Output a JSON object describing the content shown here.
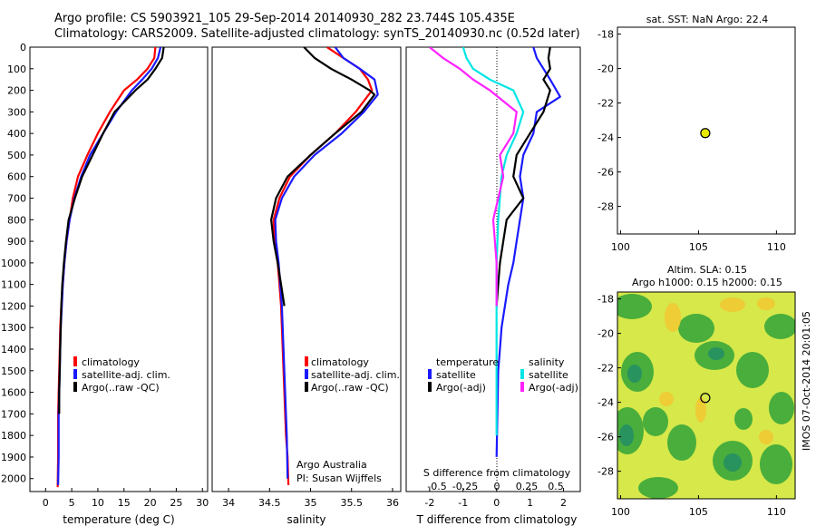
{
  "header": {
    "line1": "Argo profile: CS 5903921_105 29-Sep-2014 20140930_282 23.744S 105.435E",
    "line2": "Climatology: CARS2009. Satellite-adjusted climatology: synTS_20140930.nc (0.52d later)"
  },
  "colors": {
    "climatology": "#ff0000",
    "satellite": "#1a1aff",
    "argo": "#000000",
    "sat_salinity": "#00e5e5",
    "argo_salinity": "#ff22ff",
    "map_dot": "#e8e800"
  },
  "panel1": {
    "xlabel": "temperature (deg C)",
    "legend": [
      "climatology",
      "satellite-adj. clim.",
      "Argo(..raw -QC)"
    ]
  },
  "panel2": {
    "xlabel": "salinity",
    "legend": [
      "climatology",
      "satellite-adj. clim.",
      "Argo(..raw -QC)"
    ],
    "note1": "Argo Australia",
    "note2": "PI: Susan Wijffels"
  },
  "panel3": {
    "xlabel": "T difference from climatology",
    "top_label": "S difference from climatology",
    "legend_head_t": "temperature",
    "legend_head_s": "salinity",
    "legend_t": [
      "satellite",
      "Argo(-adj)"
    ],
    "legend_s": [
      "satellite",
      "Argo(-adj)"
    ]
  },
  "map1": {
    "title": "sat. SST: NaN Argo: 22.4"
  },
  "map2": {
    "title1": "Altim. SLA: 0.15",
    "title2": "Argo h1000: 0.15 h2000: 0.15"
  },
  "side_note": "IMOS 07-Oct-2014 20:01:05",
  "chart_data": [
    {
      "type": "line",
      "xlabel": "temperature (deg C)",
      "ylabel": "",
      "xlim": [
        -3,
        31
      ],
      "ylim": [
        2060,
        0
      ],
      "xticks": [
        0,
        5,
        10,
        15,
        20,
        25,
        30
      ],
      "yticks": [
        0,
        100,
        200,
        300,
        400,
        500,
        600,
        700,
        800,
        900,
        1000,
        1100,
        1200,
        1300,
        1400,
        1500,
        1600,
        1700,
        1800,
        1900,
        2000
      ],
      "series": [
        {
          "name": "climatology",
          "x": [
            21.0,
            20.8,
            19.5,
            17.5,
            15.0,
            12.3,
            10.0,
            8.0,
            6.2,
            5.2,
            4.6,
            4.0,
            3.6,
            3.3,
            3.0,
            2.8,
            2.7,
            2.6,
            2.5,
            2.4,
            2.4,
            2.3
          ],
          "y": [
            0,
            50,
            100,
            150,
            200,
            300,
            400,
            500,
            600,
            700,
            800,
            900,
            1000,
            1100,
            1200,
            1300,
            1400,
            1500,
            1600,
            1700,
            1900,
            2040
          ]
        },
        {
          "name": "satellite-adj. clim.",
          "x": [
            22.0,
            21.5,
            20.3,
            18.5,
            16.5,
            13.5,
            11.0,
            8.5,
            6.8,
            5.5,
            4.6,
            4.0,
            3.6,
            3.3,
            3.1,
            2.9,
            2.8,
            2.7,
            2.6,
            2.5,
            2.5,
            2.4
          ],
          "y": [
            0,
            50,
            100,
            150,
            200,
            300,
            400,
            500,
            600,
            700,
            800,
            900,
            1000,
            1100,
            1200,
            1300,
            1400,
            1500,
            1600,
            1700,
            1900,
            2030
          ]
        },
        {
          "name": "Argo(..raw -QC)",
          "x": [
            22.6,
            22.3,
            21.0,
            19.5,
            17.2,
            13.2,
            11.0,
            9.0,
            7.0,
            5.6,
            4.4,
            3.9,
            3.5,
            3.2,
            3.0,
            2.9,
            2.8,
            2.7,
            2.6,
            2.6
          ],
          "y": [
            0,
            50,
            100,
            150,
            200,
            300,
            400,
            500,
            600,
            700,
            800,
            900,
            1000,
            1100,
            1200,
            1300,
            1400,
            1500,
            1600,
            1700
          ]
        }
      ]
    },
    {
      "type": "line",
      "xlabel": "salinity",
      "ylabel": "",
      "xlim": [
        33.8,
        36.1
      ],
      "ylim": [
        2060,
        0
      ],
      "xticks": [
        34,
        34.5,
        35,
        35.5,
        36
      ],
      "series": [
        {
          "name": "climatology",
          "x": [
            35.2,
            35.4,
            35.6,
            35.7,
            35.75,
            35.55,
            35.3,
            35.0,
            34.75,
            34.62,
            34.55,
            34.56,
            34.6,
            34.62,
            34.64,
            34.66,
            34.68,
            34.7,
            34.72,
            34.73
          ],
          "y": [
            0,
            50,
            100,
            150,
            200,
            300,
            400,
            500,
            600,
            700,
            800,
            900,
            1000,
            1100,
            1200,
            1400,
            1600,
            1800,
            1900,
            2030
          ]
        },
        {
          "name": "satellite-adj. clim.",
          "x": [
            35.3,
            35.4,
            35.6,
            35.78,
            35.82,
            35.65,
            35.38,
            35.05,
            34.8,
            34.65,
            34.57,
            34.58,
            34.61,
            34.63,
            34.65,
            34.67,
            34.69,
            34.71,
            34.72
          ],
          "y": [
            0,
            50,
            100,
            150,
            220,
            300,
            400,
            500,
            600,
            700,
            800,
            900,
            1000,
            1100,
            1200,
            1400,
            1600,
            1800,
            2000
          ]
        },
        {
          "name": "Argo(..raw -QC)",
          "x": [
            34.92,
            35.05,
            35.25,
            35.5,
            35.72,
            35.78,
            35.62,
            35.3,
            35.0,
            34.72,
            34.58,
            34.52,
            34.55,
            34.6,
            34.64,
            34.68
          ],
          "y": [
            0,
            50,
            100,
            150,
            200,
            220,
            300,
            400,
            500,
            600,
            700,
            800,
            900,
            1000,
            1100,
            1200
          ]
        }
      ]
    },
    {
      "type": "line",
      "xlabel": "T difference from climatology",
      "ylabel": "",
      "xlim": [
        -2.7,
        2.5
      ],
      "ylim": [
        2060,
        0
      ],
      "xticks": [
        -2,
        -1,
        0,
        1,
        2
      ],
      "top_xticks": [
        "-0.5",
        "-0.25",
        "0",
        "0.25",
        "0.5"
      ],
      "series": [
        {
          "name": "temperature satellite",
          "x": [
            1.1,
            1.2,
            1.4,
            1.6,
            1.9,
            1.2,
            1.1,
            0.8,
            0.7,
            0.8,
            0.7,
            0.6,
            0.5,
            0.35,
            0.25,
            0.15,
            0.1,
            0.05,
            0.0
          ],
          "y": [
            0,
            50,
            100,
            150,
            230,
            300,
            400,
            500,
            600,
            700,
            800,
            900,
            1000,
            1100,
            1200,
            1300,
            1400,
            1500,
            1900
          ]
        },
        {
          "name": "temperature Argo(-adj)",
          "x": [
            1.6,
            1.55,
            1.6,
            1.4,
            1.6,
            1.4,
            1.0,
            0.6,
            0.5,
            0.8,
            0.3,
            0.2,
            0.1,
            0.05,
            0.0
          ],
          "y": [
            0,
            50,
            100,
            150,
            200,
            300,
            400,
            500,
            600,
            700,
            800,
            900,
            1000,
            1100,
            1200
          ]
        },
        {
          "name": "salinity satellite",
          "x": [
            -1.0,
            -0.9,
            -0.7,
            -0.2,
            0.5,
            0.8,
            0.6,
            0.3,
            0.15,
            0.05,
            0.0,
            0.0
          ],
          "y": [
            0,
            50,
            100,
            150,
            200,
            300,
            400,
            500,
            600,
            800,
            1000,
            1800
          ]
        },
        {
          "name": "salinity Argo(-adj)",
          "x": [
            -2.0,
            -1.6,
            -1.1,
            -0.7,
            -0.2,
            0.6,
            0.5,
            0.1,
            0.2,
            -0.1,
            0.0,
            0.0
          ],
          "y": [
            0,
            50,
            100,
            150,
            200,
            300,
            400,
            500,
            600,
            800,
            1000,
            1200
          ]
        }
      ]
    },
    {
      "type": "scatter",
      "title": "sat. SST: NaN Argo: 22.4",
      "xlim": [
        99.8,
        111.2
      ],
      "ylim": [
        -29.6,
        -17.6
      ],
      "xticks": [
        100,
        105,
        110
      ],
      "yticks": [
        -18,
        -20,
        -22,
        -24,
        -26,
        -28
      ],
      "points": [
        {
          "x": 105.435,
          "y": -23.744
        }
      ]
    },
    {
      "type": "heatmap",
      "title": "Altim. SLA: 0.15 Argo h1000: 0.15 h2000: 0.15",
      "xlim": [
        99.8,
        111.2
      ],
      "ylim": [
        -29.6,
        -17.6
      ],
      "xticks": [
        100,
        105,
        110
      ],
      "yticks": [
        -18,
        -20,
        -22,
        -24,
        -26,
        -28
      ],
      "points": [
        {
          "x": 105.435,
          "y": -23.744
        }
      ]
    }
  ]
}
